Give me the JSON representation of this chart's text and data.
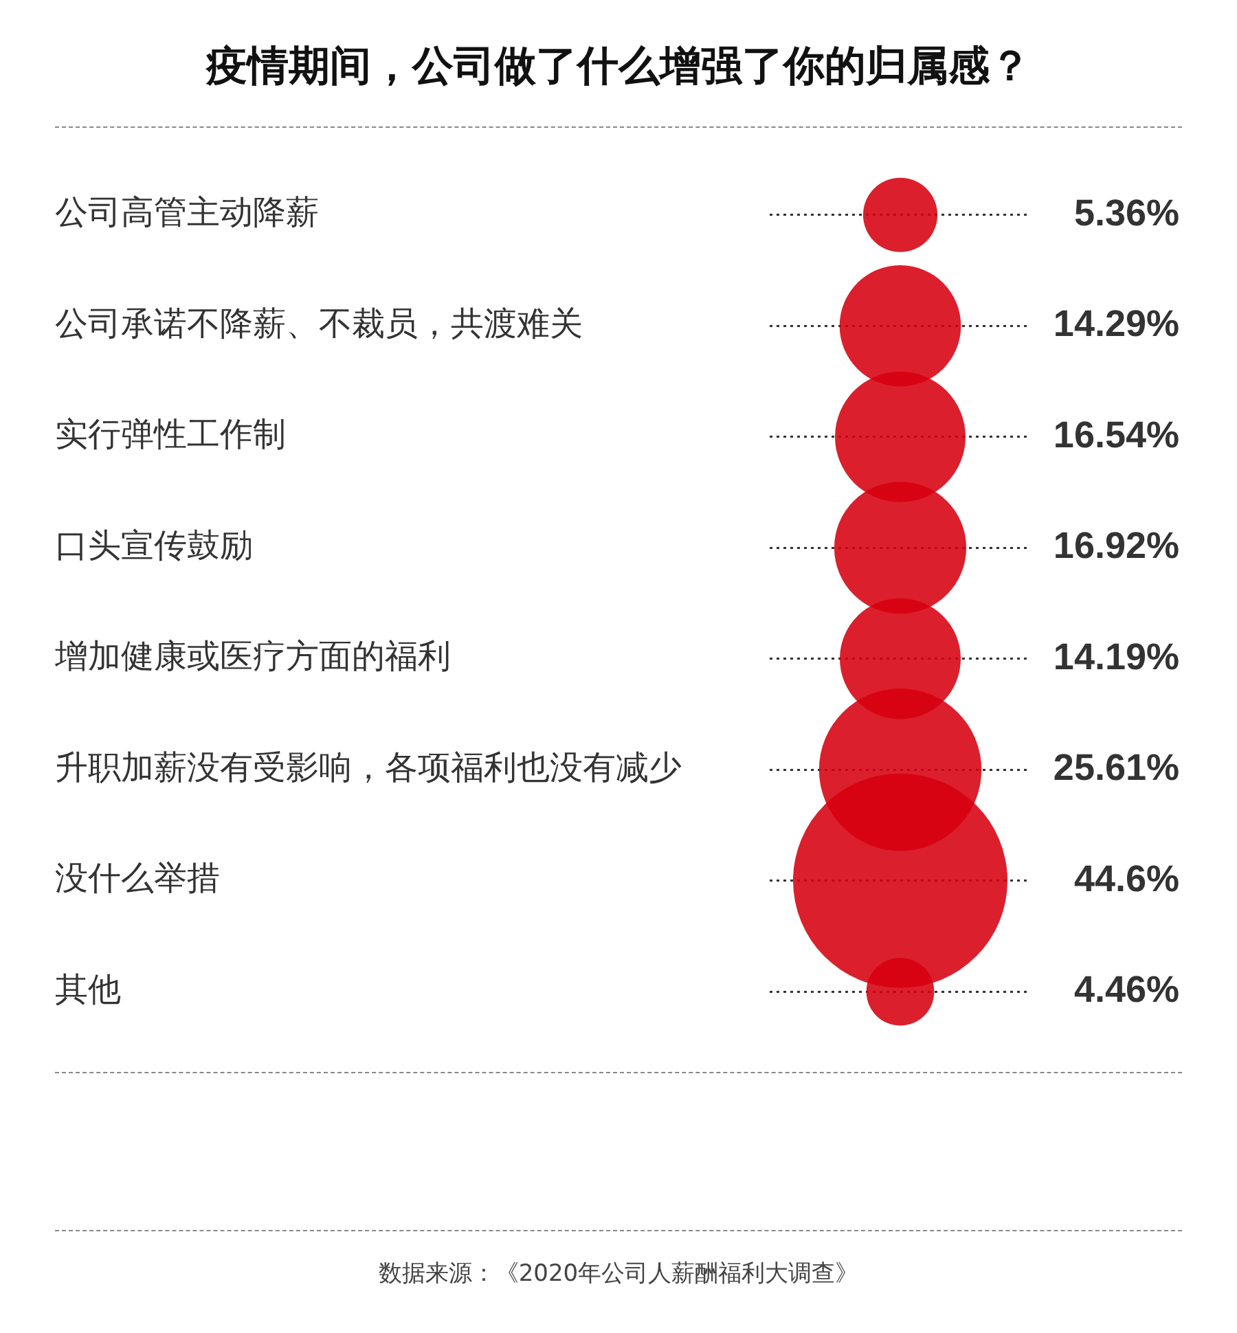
{
  "chart_data": {
    "type": "other",
    "title": "疫情期间，公司做了什么增强了你的归属感？",
    "categories": [
      "公司高管主动降薪",
      "公司承诺不降薪、不裁员，共渡难关",
      "实行弹性工作制",
      "口头宣传鼓励",
      "增加健康或医疗方面的福利",
      "升职加薪没有受影响，各项福利也没有减少",
      "没什么举措",
      "其他"
    ],
    "values": [
      5.36,
      14.29,
      16.54,
      16.92,
      14.19,
      25.61,
      44.6,
      4.46
    ],
    "value_labels": [
      "5.36%",
      "14.29%",
      "16.54%",
      "16.92%",
      "14.19%",
      "25.61%",
      "44.6%",
      "4.46%"
    ],
    "color": "#d7000f",
    "annotations": [
      "数据来源：《2020年公司人薪酬福利大调查》"
    ]
  }
}
